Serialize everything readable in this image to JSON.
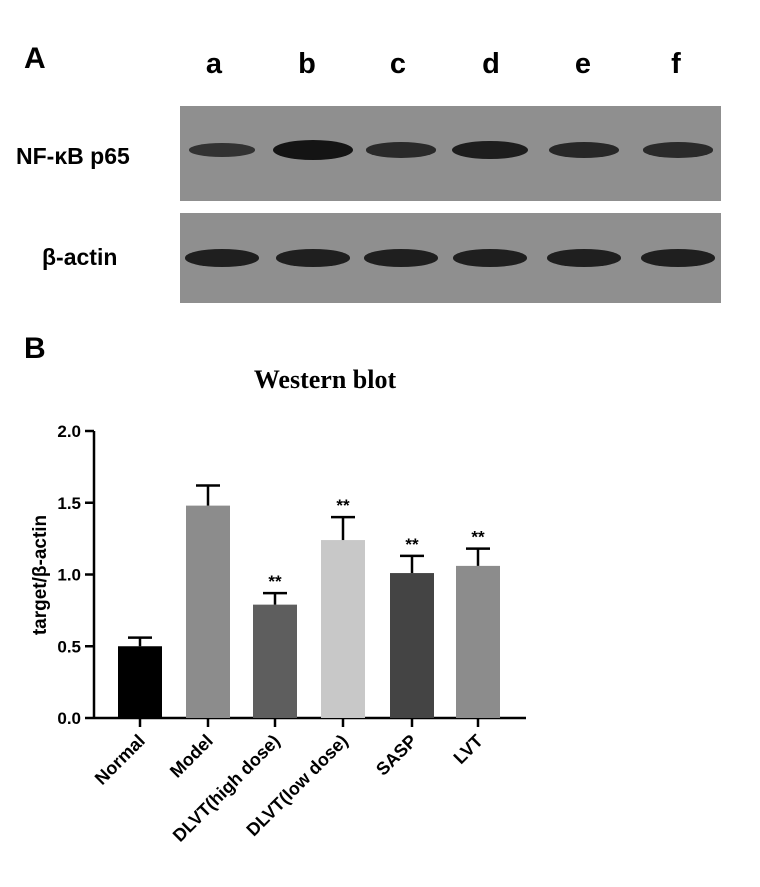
{
  "panel_a": {
    "letter": "A",
    "lanes": [
      "a",
      "b",
      "c",
      "d",
      "e",
      "f"
    ],
    "blots": [
      {
        "label": "NF-κB p65",
        "band_intensity": [
          0.45,
          1.0,
          0.6,
          0.85,
          0.65,
          0.6
        ]
      },
      {
        "label": "β-actin",
        "band_intensity": [
          0.8,
          0.8,
          0.8,
          0.8,
          0.8,
          0.8
        ]
      }
    ]
  },
  "panel_b": {
    "letter": "B"
  },
  "chart_data": {
    "type": "bar",
    "title": "Western blot",
    "xlabel": "",
    "ylabel": "target/β-actin",
    "categories": [
      "Normal",
      "Model",
      "DLVT(high dose)",
      "DLVT(low dose)",
      "SASP",
      "LVT"
    ],
    "values": [
      0.5,
      1.48,
      0.79,
      1.24,
      1.01,
      1.06
    ],
    "errors": [
      0.06,
      0.14,
      0.08,
      0.16,
      0.12,
      0.12
    ],
    "annotations": [
      "",
      "",
      "**",
      "**",
      "**",
      "**"
    ],
    "bar_colors": [
      "#000000",
      "#8c8c8c",
      "#5e5e5e",
      "#c8c8c8",
      "#444444",
      "#8c8c8c"
    ],
    "ylim": [
      0,
      2.0
    ],
    "yticks": [
      "0.0",
      "0.5",
      "1.0",
      "1.5",
      "2.0"
    ],
    "grid": false
  }
}
